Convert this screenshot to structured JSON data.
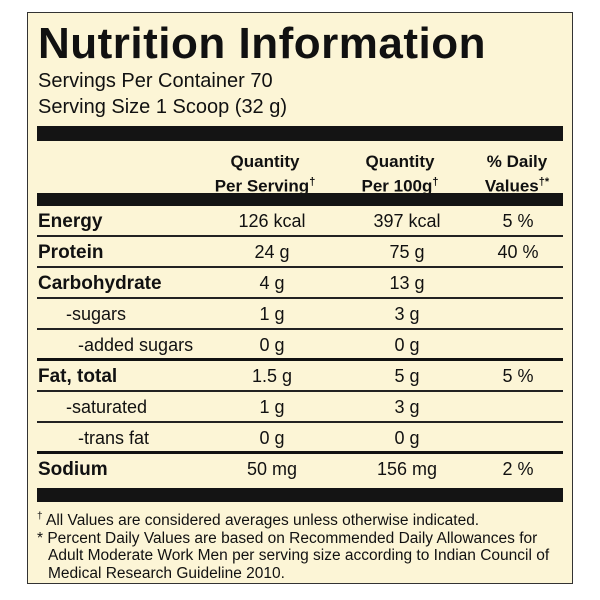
{
  "title": "Nutrition Information",
  "servings_per_container": "Servings Per Container 70",
  "serving_size": "Serving Size 1 Scoop (32 g)",
  "columns": {
    "per_serving_line1": "Quantity",
    "per_serving_line2": "Per Serving",
    "per_serving_mark": "†",
    "per_100g_line1": "Quantity",
    "per_100g_line2": "Per 100g",
    "per_100g_mark": "†",
    "daily_line1": "% Daily",
    "daily_line2": "Values",
    "daily_mark": "†*"
  },
  "rows": [
    {
      "name": "Energy",
      "per_serving": "126 kcal",
      "per_100g": "397 kcal",
      "daily_value": "5 %"
    },
    {
      "name": "Protein",
      "per_serving": "24 g",
      "per_100g": "75 g",
      "daily_value": "40 %"
    },
    {
      "name": "Carbohydrate",
      "per_serving": "4 g",
      "per_100g": "13 g",
      "daily_value": ""
    },
    {
      "name": "-sugars",
      "per_serving": "1 g",
      "per_100g": "3 g",
      "daily_value": ""
    },
    {
      "name": "-added sugars",
      "per_serving": "0 g",
      "per_100g": "0 g",
      "daily_value": ""
    },
    {
      "name": "Fat, total",
      "per_serving": "1.5 g",
      "per_100g": "5 g",
      "daily_value": "5 %"
    },
    {
      "name": "-saturated",
      "per_serving": "1 g",
      "per_100g": "3 g",
      "daily_value": ""
    },
    {
      "name": "-trans fat",
      "per_serving": "0 g",
      "per_100g": "0 g",
      "daily_value": ""
    },
    {
      "name": "Sodium",
      "per_serving": "50 mg",
      "per_100g": "156 mg",
      "daily_value": "2 %"
    }
  ],
  "footnotes": {
    "note1_mark": "†",
    "note1": "All Values are considered averages unless otherwise indicated.",
    "note2": "* Percent Daily Values are based on Recommended Daily Allowances for Adult Moderate Work Men per serving size according to Indian Council of Medical Research Guideline 2010."
  }
}
